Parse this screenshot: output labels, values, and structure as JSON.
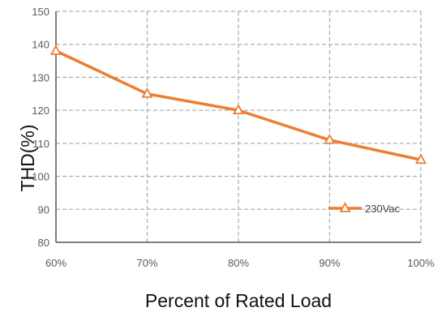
{
  "chart_data": {
    "type": "line",
    "xlabel": "Percent of Rated Load",
    "ylabel": "THD(%)",
    "categories": [
      "60%",
      "70%",
      "80%",
      "90%",
      "100%"
    ],
    "ylim": [
      80,
      150
    ],
    "yticks": [
      80,
      90,
      100,
      110,
      120,
      130,
      140,
      150
    ],
    "grid": true,
    "legend_position": "bottom-right",
    "series": [
      {
        "name": "230Vac",
        "values": [
          138,
          125,
          120,
          111,
          105
        ],
        "color": "#ED7D31",
        "marker": "triangle"
      }
    ],
    "axis_color": "#555555",
    "grid_color": "#b0b0b0"
  }
}
